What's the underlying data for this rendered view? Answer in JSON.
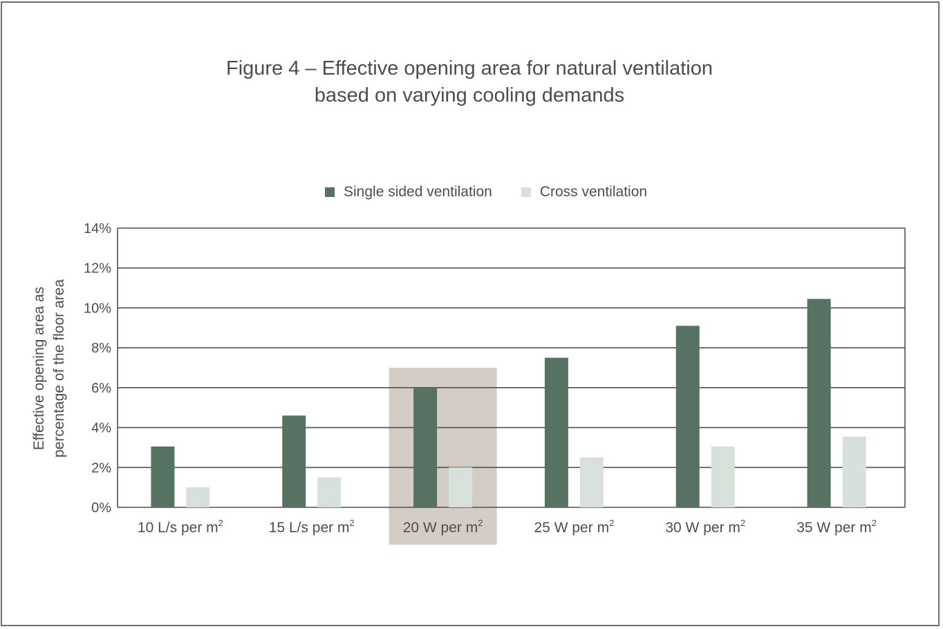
{
  "chart_data": {
    "type": "bar",
    "title_lines": [
      "Figure 4 – Effective opening area for natural ventilation",
      "based on varying cooling demands"
    ],
    "ylabel_lines": [
      "Effective opening area as",
      "percentage of the floor area"
    ],
    "xlabel": "",
    "categories": [
      {
        "base": "10 L/s per m",
        "sup": "2"
      },
      {
        "base": "15 L/s per m",
        "sup": "2"
      },
      {
        "base": "20 W per m",
        "sup": "2"
      },
      {
        "base": "25 W per m",
        "sup": "2"
      },
      {
        "base": "30 W per m",
        "sup": "2"
      },
      {
        "base": "35 W per m",
        "sup": "2"
      }
    ],
    "series": [
      {
        "name": "Single sided ventilation",
        "color": "#557263",
        "values": [
          3.05,
          4.6,
          6.0,
          7.5,
          9.1,
          10.45
        ]
      },
      {
        "name": "Cross ventilation",
        "color": "#d7e0da",
        "values": [
          1.0,
          1.5,
          2.0,
          2.5,
          3.05,
          3.55
        ]
      }
    ],
    "ylim": [
      0,
      14
    ],
    "yticks": [
      0,
      2,
      4,
      6,
      8,
      10,
      12,
      14
    ],
    "ytick_labels": [
      "0%",
      "2%",
      "4%",
      "6%",
      "8%",
      "10%",
      "12%",
      "14%"
    ],
    "grid": true,
    "legend_position": "top-center",
    "highlight_category_index": 2,
    "highlight_color": "#d3cdc6"
  }
}
